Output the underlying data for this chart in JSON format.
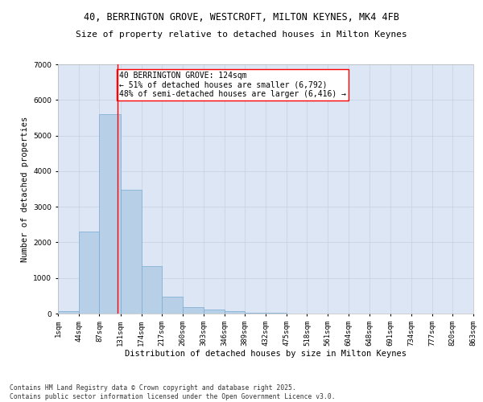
{
  "title": "40, BERRINGTON GROVE, WESTCROFT, MILTON KEYNES, MK4 4FB",
  "subtitle": "Size of property relative to detached houses in Milton Keynes",
  "xlabel": "Distribution of detached houses by size in Milton Keynes",
  "ylabel": "Number of detached properties",
  "bg_color": "#dce6f5",
  "bar_color": "#b8cfe8",
  "bar_edge_color": "#7aaad0",
  "grid_color": "#c5d0e0",
  "vline_x": 124,
  "vline_color": "red",
  "annotation_text": "40 BERRINGTON GROVE: 124sqm\n← 51% of detached houses are smaller (6,792)\n48% of semi-detached houses are larger (6,416) →",
  "annotation_box_color": "white",
  "annotation_box_edge": "red",
  "bins": [
    1,
    44,
    87,
    131,
    174,
    217,
    260,
    303,
    346,
    389,
    432,
    475,
    518,
    561,
    604,
    648,
    691,
    734,
    777,
    820,
    863
  ],
  "counts": [
    75,
    2300,
    5600,
    3480,
    1340,
    470,
    175,
    120,
    65,
    30,
    15,
    10,
    5,
    4,
    3,
    2,
    2,
    1,
    1,
    1
  ],
  "tick_labels": [
    "1sqm",
    "44sqm",
    "87sqm",
    "131sqm",
    "174sqm",
    "217sqm",
    "260sqm",
    "303sqm",
    "346sqm",
    "389sqm",
    "432sqm",
    "475sqm",
    "518sqm",
    "561sqm",
    "604sqm",
    "648sqm",
    "691sqm",
    "734sqm",
    "777sqm",
    "820sqm",
    "863sqm"
  ],
  "ylim": [
    0,
    7000
  ],
  "yticks": [
    0,
    1000,
    2000,
    3000,
    4000,
    5000,
    6000,
    7000
  ],
  "footnote": "Contains HM Land Registry data © Crown copyright and database right 2025.\nContains public sector information licensed under the Open Government Licence v3.0.",
  "title_fontsize": 8.5,
  "subtitle_fontsize": 8,
  "axis_label_fontsize": 7.5,
  "tick_fontsize": 6.5,
  "annot_fontsize": 7
}
